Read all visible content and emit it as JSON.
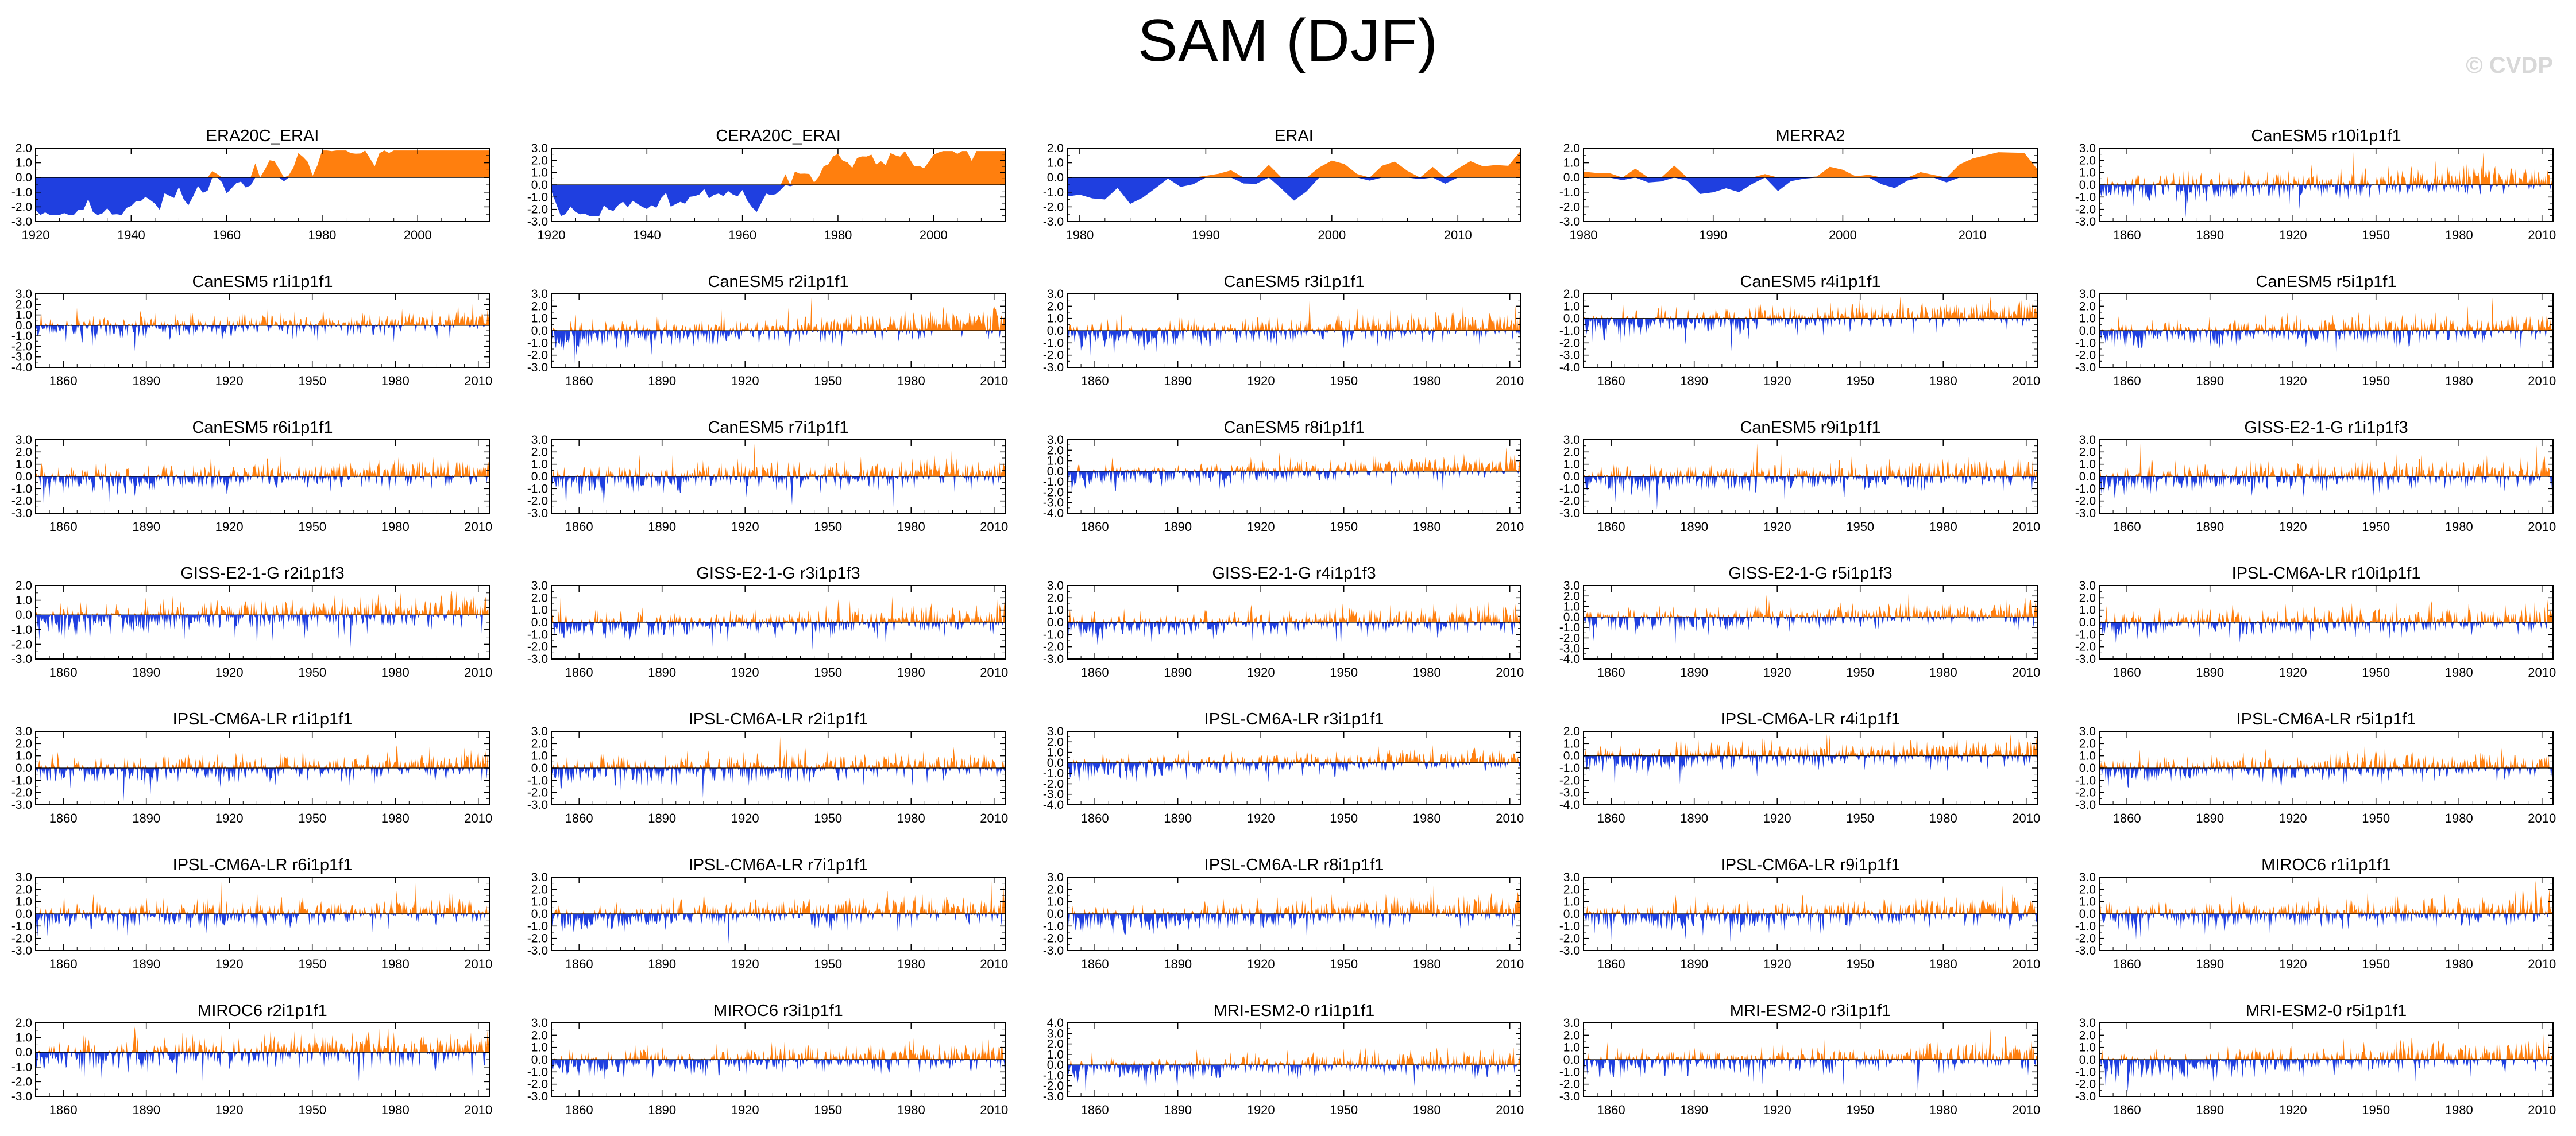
{
  "title": "SAM (DJF)",
  "watermark": "© CVDP",
  "colors": {
    "positive": "#ff7f0e",
    "negative": "#1f3fe0",
    "axis": "#000000"
  },
  "chart_data": [
    {
      "type": "area",
      "title": "ERA20C_ERAI",
      "x_start": 1920,
      "x_end": 2015,
      "ylim": [
        -3.0,
        2.0
      ],
      "yticks": [
        "2.0",
        "1.0",
        "0.0",
        "-1.0",
        "-2.0",
        "-3.0"
      ],
      "xticks": [
        1920,
        1940,
        1960,
        1980,
        2000
      ],
      "seed": 11,
      "style": "smooth",
      "trend": 0.042,
      "tmid": 1962
    },
    {
      "type": "area",
      "title": "CERA20C_ERAI",
      "x_start": 1920,
      "x_end": 2015,
      "ylim": [
        -3.0,
        3.0
      ],
      "yticks": [
        "3.0",
        "2.0",
        "1.0",
        "0.0",
        "-1.0",
        "-2.0",
        "-3.0"
      ],
      "xticks": [
        1920,
        1940,
        1960,
        1980,
        2000
      ],
      "seed": 23,
      "style": "smooth",
      "trend": 0.035,
      "tmid": 1962
    },
    {
      "type": "area",
      "title": "ERAI",
      "x_start": 1979,
      "x_end": 2015,
      "ylim": [
        -3.0,
        2.0
      ],
      "yticks": [
        "2.0",
        "1.0",
        "0.0",
        "-1.0",
        "-2.0",
        "-3.0"
      ],
      "xticks": [
        1980,
        1990,
        2000,
        2010
      ],
      "seed": 31,
      "style": "smooth",
      "trend": 0.04,
      "tmid": 1997
    },
    {
      "type": "area",
      "title": "MERRA2",
      "x_start": 1980,
      "x_end": 2015,
      "ylim": [
        -3.0,
        2.0
      ],
      "yticks": [
        "2.0",
        "1.0",
        "0.0",
        "-1.0",
        "-2.0",
        "-3.0"
      ],
      "xticks": [
        1980,
        1990,
        2000,
        2010
      ],
      "seed": 37,
      "style": "smooth",
      "trend": 0.04,
      "tmid": 1997
    },
    {
      "type": "area",
      "title": "CanESM5 r10i1p1f1",
      "x_start": 1850,
      "x_end": 2014,
      "ylim": [
        -3.0,
        3.0
      ],
      "yticks": [
        "3.0",
        "2.0",
        "1.0",
        "0.0",
        "-1.0",
        "-2.0",
        "-3.0"
      ],
      "xticks": [
        1860,
        1890,
        1920,
        1950,
        1980,
        2010
      ],
      "seed": 41,
      "style": "spiky",
      "trend": 0.006,
      "tmid": 1932
    },
    {
      "type": "area",
      "title": "CanESM5 r1i1p1f1",
      "x_start": 1850,
      "x_end": 2014,
      "ylim": [
        -4.0,
        3.0
      ],
      "yticks": [
        "3.0",
        "2.0",
        "1.0",
        "0.0",
        "-1.0",
        "-2.0",
        "-3.0",
        "-4.0"
      ],
      "xticks": [
        1860,
        1890,
        1920,
        1950,
        1980,
        2010
      ],
      "seed": 53,
      "style": "spiky",
      "trend": 0.004,
      "tmid": 1932
    },
    {
      "type": "area",
      "title": "CanESM5 r2i1p1f1",
      "x_start": 1850,
      "x_end": 2014,
      "ylim": [
        -3.0,
        3.0
      ],
      "yticks": [
        "3.0",
        "2.0",
        "1.0",
        "0.0",
        "-1.0",
        "-2.0",
        "-3.0"
      ],
      "xticks": [
        1860,
        1890,
        1920,
        1950,
        1980,
        2010
      ],
      "seed": 59,
      "style": "spiky",
      "trend": 0.008,
      "tmid": 1932
    },
    {
      "type": "area",
      "title": "CanESM5 r3i1p1f1",
      "x_start": 1850,
      "x_end": 2014,
      "ylim": [
        -3.0,
        3.0
      ],
      "yticks": [
        "3.0",
        "2.0",
        "1.0",
        "0.0",
        "-1.0",
        "-2.0",
        "-3.0"
      ],
      "xticks": [
        1860,
        1890,
        1920,
        1950,
        1980,
        2010
      ],
      "seed": 61,
      "style": "spiky",
      "trend": 0.005,
      "tmid": 1932
    },
    {
      "type": "area",
      "title": "CanESM5 r4i1p1f1",
      "x_start": 1850,
      "x_end": 2014,
      "ylim": [
        -4.0,
        2.0
      ],
      "yticks": [
        "2.0",
        "1.0",
        "0.0",
        "-1.0",
        "-2.0",
        "-3.0",
        "-4.0"
      ],
      "xticks": [
        1860,
        1890,
        1920,
        1950,
        1980,
        2010
      ],
      "seed": 67,
      "style": "spiky",
      "trend": 0.006,
      "tmid": 1932
    },
    {
      "type": "area",
      "title": "CanESM5 r5i1p1f1",
      "x_start": 1850,
      "x_end": 2014,
      "ylim": [
        -3.0,
        3.0
      ],
      "yticks": [
        "3.0",
        "2.0",
        "1.0",
        "0.0",
        "-1.0",
        "-2.0",
        "-3.0"
      ],
      "xticks": [
        1860,
        1890,
        1920,
        1950,
        1980,
        2010
      ],
      "seed": 71,
      "style": "spiky",
      "trend": 0.004,
      "tmid": 1932
    },
    {
      "type": "area",
      "title": "CanESM5 r6i1p1f1",
      "x_start": 1850,
      "x_end": 2014,
      "ylim": [
        -3.0,
        3.0
      ],
      "yticks": [
        "3.0",
        "2.0",
        "1.0",
        "0.0",
        "-1.0",
        "-2.0",
        "-3.0"
      ],
      "xticks": [
        1860,
        1890,
        1920,
        1950,
        1980,
        2010
      ],
      "seed": 73,
      "style": "spiky",
      "trend": 0.005,
      "tmid": 1932
    },
    {
      "type": "area",
      "title": "CanESM5 r7i1p1f1",
      "x_start": 1850,
      "x_end": 2014,
      "ylim": [
        -3.0,
        3.0
      ],
      "yticks": [
        "3.0",
        "2.0",
        "1.0",
        "0.0",
        "-1.0",
        "-2.0",
        "-3.0"
      ],
      "xticks": [
        1860,
        1890,
        1920,
        1950,
        1980,
        2010
      ],
      "seed": 79,
      "style": "spiky",
      "trend": 0.004,
      "tmid": 1932
    },
    {
      "type": "area",
      "title": "CanESM5 r8i1p1f1",
      "x_start": 1850,
      "x_end": 2014,
      "ylim": [
        -4.0,
        3.0
      ],
      "yticks": [
        "3.0",
        "2.0",
        "1.0",
        "0.0",
        "-1.0",
        "-2.0",
        "-3.0",
        "-4.0"
      ],
      "xticks": [
        1860,
        1890,
        1920,
        1950,
        1980,
        2010
      ],
      "seed": 83,
      "style": "spiky",
      "trend": 0.007,
      "tmid": 1932
    },
    {
      "type": "area",
      "title": "CanESM5 r9i1p1f1",
      "x_start": 1850,
      "x_end": 2014,
      "ylim": [
        -3.0,
        3.0
      ],
      "yticks": [
        "3.0",
        "2.0",
        "1.0",
        "0.0",
        "-1.0",
        "-2.0",
        "-3.0"
      ],
      "xticks": [
        1860,
        1890,
        1920,
        1950,
        1980,
        2010
      ],
      "seed": 89,
      "style": "spiky",
      "trend": 0.004,
      "tmid": 1932
    },
    {
      "type": "area",
      "title": "GISS-E2-1-G r1i1p1f3",
      "x_start": 1850,
      "x_end": 2014,
      "ylim": [
        -3.0,
        3.0
      ],
      "yticks": [
        "3.0",
        "2.0",
        "1.0",
        "0.0",
        "-1.0",
        "-2.0",
        "-3.0"
      ],
      "xticks": [
        1860,
        1890,
        1920,
        1950,
        1980,
        2010
      ],
      "seed": 97,
      "style": "spiky",
      "trend": 0.004,
      "tmid": 1932
    },
    {
      "type": "area",
      "title": "GISS-E2-1-G r2i1p1f3",
      "x_start": 1850,
      "x_end": 2014,
      "ylim": [
        -3.0,
        2.0
      ],
      "yticks": [
        "2.0",
        "1.0",
        "0.0",
        "-1.0",
        "-2.0",
        "-3.0"
      ],
      "xticks": [
        1860,
        1890,
        1920,
        1950,
        1980,
        2010
      ],
      "seed": 101,
      "style": "spiky",
      "trend": 0.005,
      "tmid": 1932
    },
    {
      "type": "area",
      "title": "GISS-E2-1-G r3i1p1f3",
      "x_start": 1850,
      "x_end": 2014,
      "ylim": [
        -3.0,
        3.0
      ],
      "yticks": [
        "3.0",
        "2.0",
        "1.0",
        "0.0",
        "-1.0",
        "-2.0",
        "-3.0"
      ],
      "xticks": [
        1860,
        1890,
        1920,
        1950,
        1980,
        2010
      ],
      "seed": 103,
      "style": "spiky",
      "trend": 0.004,
      "tmid": 1932
    },
    {
      "type": "area",
      "title": "GISS-E2-1-G r4i1p1f3",
      "x_start": 1850,
      "x_end": 2014,
      "ylim": [
        -3.0,
        3.0
      ],
      "yticks": [
        "3.0",
        "2.0",
        "1.0",
        "0.0",
        "-1.0",
        "-2.0",
        "-3.0"
      ],
      "xticks": [
        1860,
        1890,
        1920,
        1950,
        1980,
        2010
      ],
      "seed": 107,
      "style": "spiky",
      "trend": 0.005,
      "tmid": 1932
    },
    {
      "type": "area",
      "title": "GISS-E2-1-G r5i1p1f3",
      "x_start": 1850,
      "x_end": 2014,
      "ylim": [
        -4.0,
        3.0
      ],
      "yticks": [
        "3.0",
        "2.0",
        "1.0",
        "0.0",
        "-1.0",
        "-2.0",
        "-3.0",
        "-4.0"
      ],
      "xticks": [
        1860,
        1890,
        1920,
        1950,
        1980,
        2010
      ],
      "seed": 109,
      "style": "spiky",
      "trend": 0.004,
      "tmid": 1932
    },
    {
      "type": "area",
      "title": "IPSL-CM6A-LR r10i1p1f1",
      "x_start": 1850,
      "x_end": 2014,
      "ylim": [
        -3.0,
        3.0
      ],
      "yticks": [
        "3.0",
        "2.0",
        "1.0",
        "0.0",
        "-1.0",
        "-2.0",
        "-3.0"
      ],
      "xticks": [
        1860,
        1890,
        1920,
        1950,
        1980,
        2010
      ],
      "seed": 113,
      "style": "spiky",
      "trend": 0.004,
      "tmid": 1932
    },
    {
      "type": "area",
      "title": "IPSL-CM6A-LR r1i1p1f1",
      "x_start": 1850,
      "x_end": 2014,
      "ylim": [
        -3.0,
        3.0
      ],
      "yticks": [
        "3.0",
        "2.0",
        "1.0",
        "0.0",
        "-1.0",
        "-2.0",
        "-3.0"
      ],
      "xticks": [
        1860,
        1890,
        1920,
        1950,
        1980,
        2010
      ],
      "seed": 127,
      "style": "spiky",
      "trend": 0.004,
      "tmid": 1932
    },
    {
      "type": "area",
      "title": "IPSL-CM6A-LR r2i1p1f1",
      "x_start": 1850,
      "x_end": 2014,
      "ylim": [
        -3.0,
        3.0
      ],
      "yticks": [
        "3.0",
        "2.0",
        "1.0",
        "0.0",
        "-1.0",
        "-2.0",
        "-3.0"
      ],
      "xticks": [
        1860,
        1890,
        1920,
        1950,
        1980,
        2010
      ],
      "seed": 131,
      "style": "spiky",
      "trend": 0.004,
      "tmid": 1932
    },
    {
      "type": "area",
      "title": "IPSL-CM6A-LR r3i1p1f1",
      "x_start": 1850,
      "x_end": 2014,
      "ylim": [
        -4.0,
        3.0
      ],
      "yticks": [
        "3.0",
        "2.0",
        "1.0",
        "0.0",
        "-1.0",
        "-2.0",
        "-3.0",
        "-4.0"
      ],
      "xticks": [
        1860,
        1890,
        1920,
        1950,
        1980,
        2010
      ],
      "seed": 137,
      "style": "spiky",
      "trend": 0.005,
      "tmid": 1932
    },
    {
      "type": "area",
      "title": "IPSL-CM6A-LR r4i1p1f1",
      "x_start": 1850,
      "x_end": 2014,
      "ylim": [
        -4.0,
        2.0
      ],
      "yticks": [
        "2.0",
        "1.0",
        "0.0",
        "-1.0",
        "-2.0",
        "-3.0",
        "-4.0"
      ],
      "xticks": [
        1860,
        1890,
        1920,
        1950,
        1980,
        2010
      ],
      "seed": 139,
      "style": "spiky",
      "trend": 0.004,
      "tmid": 1932
    },
    {
      "type": "area",
      "title": "IPSL-CM6A-LR r5i1p1f1",
      "x_start": 1850,
      "x_end": 2014,
      "ylim": [
        -3.0,
        3.0
      ],
      "yticks": [
        "3.0",
        "2.0",
        "1.0",
        "0.0",
        "-1.0",
        "-2.0",
        "-3.0"
      ],
      "xticks": [
        1860,
        1890,
        1920,
        1950,
        1980,
        2010
      ],
      "seed": 149,
      "style": "spiky",
      "trend": 0.004,
      "tmid": 1932
    },
    {
      "type": "area",
      "title": "IPSL-CM6A-LR r6i1p1f1",
      "x_start": 1850,
      "x_end": 2014,
      "ylim": [
        -3.0,
        3.0
      ],
      "yticks": [
        "3.0",
        "2.0",
        "1.0",
        "0.0",
        "-1.0",
        "-2.0",
        "-3.0"
      ],
      "xticks": [
        1860,
        1890,
        1920,
        1950,
        1980,
        2010
      ],
      "seed": 151,
      "style": "spiky",
      "trend": 0.004,
      "tmid": 1932
    },
    {
      "type": "area",
      "title": "IPSL-CM6A-LR r7i1p1f1",
      "x_start": 1850,
      "x_end": 2014,
      "ylim": [
        -3.0,
        3.0
      ],
      "yticks": [
        "3.0",
        "2.0",
        "1.0",
        "0.0",
        "-1.0",
        "-2.0",
        "-3.0"
      ],
      "xticks": [
        1860,
        1890,
        1920,
        1950,
        1980,
        2010
      ],
      "seed": 157,
      "style": "spiky",
      "trend": 0.005,
      "tmid": 1932
    },
    {
      "type": "area",
      "title": "IPSL-CM6A-LR r8i1p1f1",
      "x_start": 1850,
      "x_end": 2014,
      "ylim": [
        -3.0,
        3.0
      ],
      "yticks": [
        "3.0",
        "2.0",
        "1.0",
        "0.0",
        "-1.0",
        "-2.0",
        "-3.0"
      ],
      "xticks": [
        1860,
        1890,
        1920,
        1950,
        1980,
        2010
      ],
      "seed": 163,
      "style": "spiky",
      "trend": 0.006,
      "tmid": 1932
    },
    {
      "type": "area",
      "title": "IPSL-CM6A-LR r9i1p1f1",
      "x_start": 1850,
      "x_end": 2014,
      "ylim": [
        -3.0,
        3.0
      ],
      "yticks": [
        "3.0",
        "2.0",
        "1.0",
        "0.0",
        "-1.0",
        "-2.0",
        "-3.0"
      ],
      "xticks": [
        1860,
        1890,
        1920,
        1950,
        1980,
        2010
      ],
      "seed": 167,
      "style": "spiky",
      "trend": 0.004,
      "tmid": 1932
    },
    {
      "type": "area",
      "title": "MIROC6 r1i1p1f1",
      "x_start": 1850,
      "x_end": 2014,
      "ylim": [
        -3.0,
        3.0
      ],
      "yticks": [
        "3.0",
        "2.0",
        "1.0",
        "0.0",
        "-1.0",
        "-2.0",
        "-3.0"
      ],
      "xticks": [
        1860,
        1890,
        1920,
        1950,
        1980,
        2010
      ],
      "seed": 173,
      "style": "spiky",
      "trend": 0.004,
      "tmid": 1932
    },
    {
      "type": "area",
      "title": "MIROC6 r2i1p1f1",
      "x_start": 1850,
      "x_end": 2014,
      "ylim": [
        -3.0,
        2.0
      ],
      "yticks": [
        "2.0",
        "1.0",
        "0.0",
        "-1.0",
        "-2.0",
        "-3.0"
      ],
      "xticks": [
        1860,
        1890,
        1920,
        1950,
        1980,
        2010
      ],
      "seed": 179,
      "style": "spiky",
      "trend": 0.004,
      "tmid": 1932
    },
    {
      "type": "area",
      "title": "MIROC6 r3i1p1f1",
      "x_start": 1850,
      "x_end": 2014,
      "ylim": [
        -3.0,
        3.0
      ],
      "yticks": [
        "3.0",
        "2.0",
        "1.0",
        "0.0",
        "-1.0",
        "-2.0",
        "-3.0"
      ],
      "xticks": [
        1860,
        1890,
        1920,
        1950,
        1980,
        2010
      ],
      "seed": 181,
      "style": "spiky",
      "trend": 0.004,
      "tmid": 1932
    },
    {
      "type": "area",
      "title": "MRI-ESM2-0 r1i1p1f1",
      "x_start": 1850,
      "x_end": 2014,
      "ylim": [
        -3.0,
        4.0
      ],
      "yticks": [
        "4.0",
        "3.0",
        "2.0",
        "1.0",
        "0.0",
        "-1.0",
        "-2.0",
        "-3.0"
      ],
      "xticks": [
        1860,
        1890,
        1920,
        1950,
        1980,
        2010
      ],
      "seed": 191,
      "style": "spiky",
      "trend": 0.004,
      "tmid": 1932
    },
    {
      "type": "area",
      "title": "MRI-ESM2-0 r3i1p1f1",
      "x_start": 1850,
      "x_end": 2014,
      "ylim": [
        -3.0,
        3.0
      ],
      "yticks": [
        "3.0",
        "2.0",
        "1.0",
        "0.0",
        "-1.0",
        "-2.0",
        "-3.0"
      ],
      "xticks": [
        1860,
        1890,
        1920,
        1950,
        1980,
        2010
      ],
      "seed": 193,
      "style": "spiky",
      "trend": 0.004,
      "tmid": 1932
    },
    {
      "type": "area",
      "title": "MRI-ESM2-0 r5i1p1f1",
      "x_start": 1850,
      "x_end": 2014,
      "ylim": [
        -3.0,
        3.0
      ],
      "yticks": [
        "3.0",
        "2.0",
        "1.0",
        "0.0",
        "-1.0",
        "-2.0",
        "-3.0"
      ],
      "xticks": [
        1860,
        1890,
        1920,
        1950,
        1980,
        2010
      ],
      "seed": 197,
      "style": "spiky",
      "trend": 0.006,
      "tmid": 1932
    }
  ]
}
